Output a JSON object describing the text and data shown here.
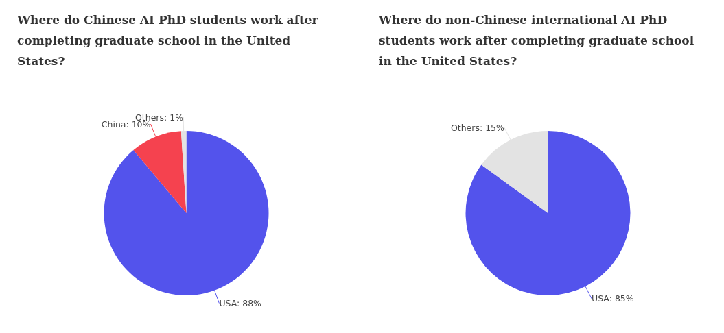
{
  "chart_data": [
    {
      "type": "pie",
      "title": "Where do Chinese AI PhD students work after completing graduate school in the United States?",
      "categories": [
        "USA",
        "China",
        "Others"
      ],
      "values": [
        88,
        10,
        1
      ],
      "colors": [
        "#5353ec",
        "#f5424f",
        "#e3e3e3"
      ],
      "value_labels": [
        "88%",
        "10%",
        "1%"
      ]
    },
    {
      "type": "pie",
      "title": "Where do non-Chinese international AI PhD students work after completing graduate school in the United States?",
      "categories": [
        "USA",
        "Others"
      ],
      "values": [
        85,
        15
      ],
      "colors": [
        "#5353ec",
        "#e3e3e3"
      ],
      "value_labels": [
        "85%",
        "15%"
      ]
    }
  ]
}
